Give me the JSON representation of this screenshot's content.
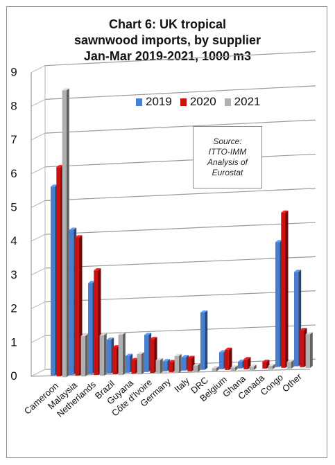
{
  "chart_data": {
    "type": "bar",
    "title_lines": [
      "Chart 6: UK tropical",
      "sawnwood imports, by supplier",
      "Jan-Mar 2019-2021, 1000 m3"
    ],
    "categories": [
      "Cameroon",
      "Malaysia",
      "Netherlands",
      "Brazil",
      "Guyana",
      "Côte d'Ivoire",
      "Germany",
      "Italy",
      "DRC",
      "Belgium",
      "Ghana",
      "Canada",
      "Congo",
      "Other"
    ],
    "series": [
      {
        "name": "2019",
        "color": "#4a7ed0",
        "values": [
          5.6,
          4.3,
          2.7,
          1.0,
          0.5,
          1.1,
          0.3,
          0.4,
          1.7,
          0.5,
          0.2,
          0.0,
          3.7,
          2.8
        ]
      },
      {
        "name": "2020",
        "color": "#cc1111",
        "values": [
          6.2,
          4.1,
          3.1,
          0.8,
          0.4,
          1.0,
          0.3,
          0.4,
          0.0,
          0.6,
          0.3,
          0.2,
          4.6,
          1.1
        ]
      },
      {
        "name": "2021",
        "color": "#b0b0b0",
        "values": [
          8.5,
          1.2,
          1.2,
          1.2,
          0.6,
          0.4,
          0.5,
          0.2,
          0.1,
          0.1,
          0.1,
          0.1,
          0.2,
          1.0
        ]
      }
    ],
    "y_ticks": [
      "0",
      "1",
      "2",
      "3",
      "4",
      "5",
      "6",
      "7",
      "8",
      "9"
    ],
    "ylim": [
      0,
      9
    ],
    "grid": true,
    "legend_position": "top-right",
    "style": "3d-column"
  },
  "source_note": [
    "Source:",
    "ITTO-IMM",
    "Analysis of",
    "Eurostat"
  ]
}
